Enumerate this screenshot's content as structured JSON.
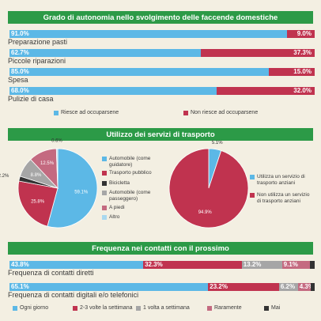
{
  "colors": {
    "blue": "#5cb8e6",
    "red": "#c0334f",
    "gray": "#a6a6a6",
    "pink": "#c46a80",
    "dark": "#333333",
    "green": "#2c9a47",
    "lightblue": "#a9d8ef"
  },
  "chart_data": [
    {
      "type": "bar",
      "stacked": true,
      "orientation": "horizontal",
      "title": "Grado di autonomia nello svolgimento delle faccende domestiche",
      "categories": [
        "Preparazione pasti",
        "Piccole riparazioni",
        "Spesa",
        "Pulizie di casa"
      ],
      "series": [
        {
          "name": "Riesce ad occuparsene",
          "values": [
            91.0,
            62.7,
            85.0,
            68.0
          ],
          "labels": [
            "91.0%",
            "62.7%",
            "85.0%",
            "68.0%"
          ]
        },
        {
          "name": "Non riesce ad occuparsene",
          "values": [
            9.0,
            37.3,
            15.0,
            32.0
          ],
          "labels": [
            "9.0%",
            "37.3%",
            "15.0%",
            "32.0%"
          ]
        }
      ],
      "legend_position": "bottom"
    },
    {
      "type": "pie",
      "section_title": "Utilizzo dei servizi di trasporto",
      "slices": [
        {
          "name": "Automobile (come guidatore)",
          "value": 59.1,
          "label": "59.1%"
        },
        {
          "name": "Trasporto pubblico",
          "value": 25.8,
          "label": "25.8%"
        },
        {
          "name": "Bicicletta",
          "value": 2.2,
          "label": "2.2%"
        },
        {
          "name": "Automobile (come passeggero)",
          "value": 8.8,
          "label": "8.8%"
        },
        {
          "name": "A piedi",
          "value": 12.5,
          "label": "12.5%"
        },
        {
          "name": "Altro",
          "value": 0.6,
          "label": "0.6%"
        }
      ],
      "legend_position": "right"
    },
    {
      "type": "pie",
      "slices": [
        {
          "name": "Utilizza un servizio di trasporto anziani",
          "value": 5.1,
          "label": "5.1%"
        },
        {
          "name": "Non utilizza un servizio di trasporto anziani",
          "value": 94.9,
          "label": "94.9%"
        }
      ],
      "legend_position": "right"
    },
    {
      "type": "bar",
      "stacked": true,
      "orientation": "horizontal",
      "title": "Frequenza nei contatti con il prossimo",
      "categories": [
        "Frequenza di contatti diretti",
        "Frequenza di contatti digitali e/o telefonici"
      ],
      "series": [
        {
          "name": "Ogni giorno",
          "values": [
            43.8,
            65.1
          ],
          "labels": [
            "43.8%",
            "65.1%"
          ]
        },
        {
          "name": "2-3 volte la settimana",
          "values": [
            32.3,
            23.2
          ],
          "labels": [
            "32.3%",
            "23.2%"
          ]
        },
        {
          "name": "1 volta a settimana",
          "values": [
            13.2,
            6.2
          ],
          "labels": [
            "13.2%",
            "6.2%"
          ]
        },
        {
          "name": "Raramente",
          "values": [
            9.1,
            4.3
          ],
          "labels": [
            "9.1%",
            "4.3%"
          ]
        },
        {
          "name": "Mai",
          "values": [
            1.6,
            1.2
          ],
          "labels": [
            "",
            ""
          ]
        }
      ],
      "legend_position": "bottom"
    }
  ]
}
